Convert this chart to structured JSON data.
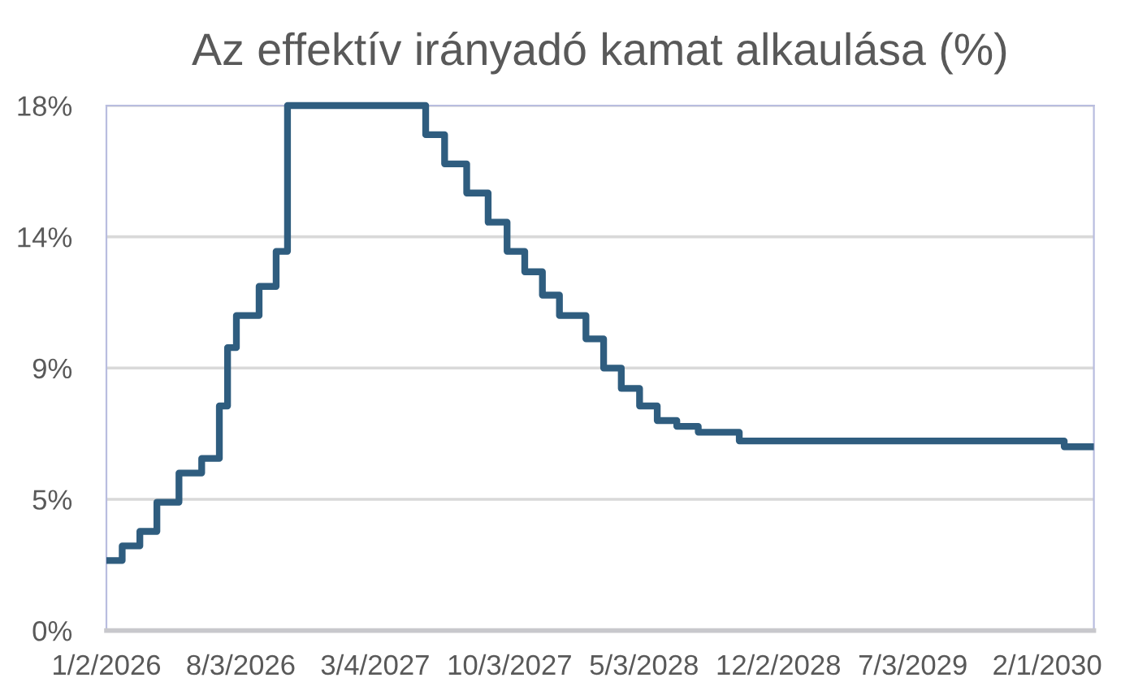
{
  "chart_data": {
    "type": "step",
    "title": "Az effektív irányadó kamat alkaulása (%)",
    "x": [
      "2026-01-02",
      "2026-01-27",
      "2026-02-24",
      "2026-03-23",
      "2026-04-27",
      "2026-06-02",
      "2026-06-30",
      "2026-07-13",
      "2026-07-27",
      "2026-09-01",
      "2026-09-28",
      "2026-10-16",
      "2027-05-23",
      "2027-06-22",
      "2027-07-27",
      "2027-08-30",
      "2027-09-29",
      "2027-10-27",
      "2027-11-24",
      "2027-12-21",
      "2028-02-01",
      "2028-02-29",
      "2028-03-28",
      "2028-04-26",
      "2028-05-24",
      "2028-06-24",
      "2028-07-28",
      "2028-10-01",
      "2030-02-28",
      "2030-04-16"
    ],
    "series": [
      {
        "color": "#2f5d7f",
        "values": [
          2.4,
          2.9,
          3.4,
          4.4,
          5.4,
          5.9,
          7.7,
          9.7,
          10.8,
          11.8,
          13.0,
          18,
          17.0,
          16.0,
          15.0,
          14.0,
          13.0,
          12.3,
          11.5,
          10.8,
          10.0,
          9.0,
          8.3,
          7.7,
          7.2,
          7.0,
          6.8,
          6.5,
          6.3,
          6.3
        ]
      }
    ],
    "xlim": [
      "2026-01-02",
      "2030-04-16"
    ],
    "xticks": [
      {
        "value": "2026-01-02",
        "label": "1/2/2026"
      },
      {
        "value": "2026-08-03",
        "label": "8/3/2026"
      },
      {
        "value": "2027-03-04",
        "label": "3/4/2027"
      },
      {
        "value": "2027-10-03",
        "label": "10/3/2027"
      },
      {
        "value": "2028-05-03",
        "label": "5/3/2028"
      },
      {
        "value": "2028-12-02",
        "label": "12/2/2028"
      },
      {
        "value": "2029-07-03",
        "label": "7/3/2029"
      },
      {
        "value": "2030-02-01",
        "label": "2/1/2030"
      }
    ],
    "ylim": [
      0,
      18
    ],
    "yticks": [
      {
        "value": 0,
        "label": "0%"
      },
      {
        "value": 4.5,
        "label": "5%"
      },
      {
        "value": 9,
        "label": "9%"
      },
      {
        "value": 13.5,
        "label": "14%"
      },
      {
        "value": 18,
        "label": "18%"
      }
    ],
    "grid": "y"
  }
}
